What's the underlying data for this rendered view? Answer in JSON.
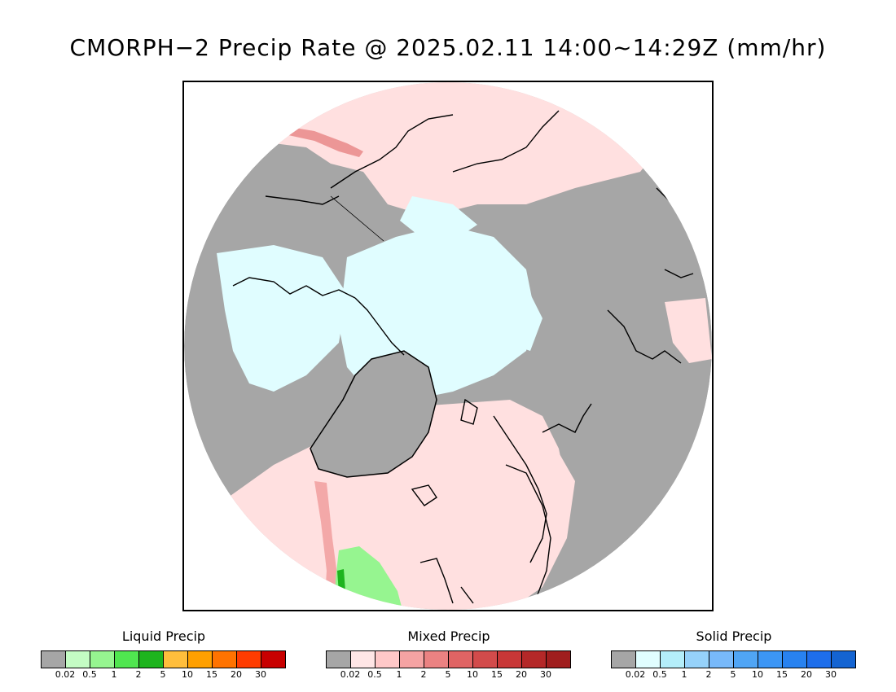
{
  "title": "CMORPH−2 Precip Rate @ 2025.02.11 14:00~14:29Z (mm/hr)",
  "map": {
    "projection": "north-polar-stereographic",
    "no_precip_color": "#a6a6a6",
    "mixed_light_color": "#ffe0e0",
    "solid_light_color": "#e0fdff",
    "coastline_color": "#000000"
  },
  "legends": [
    {
      "title": "Liquid Precip",
      "ticks": [
        "0.02",
        "0.5",
        "1",
        "2",
        "5",
        "10",
        "15",
        "20",
        "30"
      ],
      "colors": [
        "#a6a6a6",
        "#c4fcc4",
        "#96f590",
        "#50e650",
        "#1eb41e",
        "#ffbe3c",
        "#ffa000",
        "#ff7300",
        "#ff3c00",
        "#c80000"
      ]
    },
    {
      "title": "Mixed Precip",
      "ticks": [
        "0.02",
        "0.5",
        "1",
        "2",
        "5",
        "10",
        "15",
        "20",
        "30"
      ],
      "colors": [
        "#a6a6a6",
        "#ffe6e6",
        "#ffc8c8",
        "#f5a3a3",
        "#eb8282",
        "#e06464",
        "#d24b4b",
        "#c83737",
        "#b42828",
        "#a01e1e"
      ]
    },
    {
      "title": "Solid Precip",
      "ticks": [
        "0.02",
        "0.5",
        "1",
        "2",
        "5",
        "10",
        "15",
        "20",
        "30"
      ],
      "colors": [
        "#a6a6a6",
        "#e1feff",
        "#b4eefa",
        "#96d2fa",
        "#78b9fa",
        "#50a5f5",
        "#3c96f5",
        "#2882f0",
        "#1e6eeb",
        "#1464d2"
      ]
    }
  ]
}
